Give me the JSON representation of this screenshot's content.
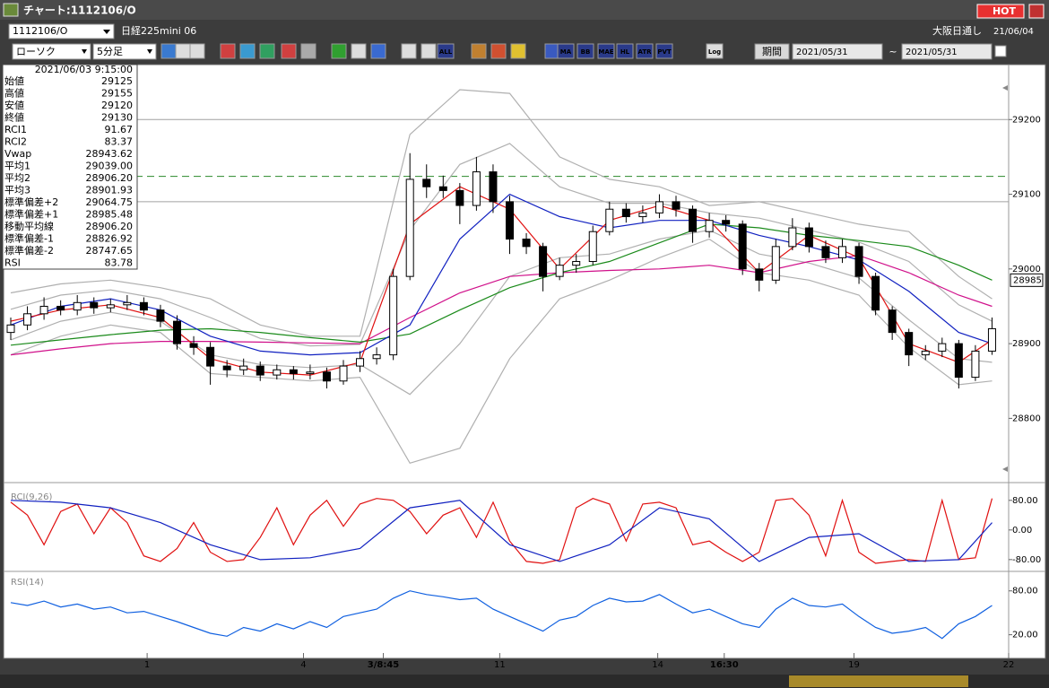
{
  "window": {
    "title": "チャート:1112106/O",
    "hot": "HOT"
  },
  "toolbar": {
    "symbol": "1112106/O",
    "name": "日経225mini 06",
    "market": "大阪日通し",
    "date": "21/06/04",
    "chart_kind": "ローソク",
    "interval": "5分足",
    "icon_labels": [
      "ALL",
      "MA",
      "BB",
      "MAE",
      "HL",
      "ATR",
      "PVT",
      "Log"
    ],
    "period_button": "期間",
    "from": "2021/05/31",
    "tilde": "~",
    "to": "2021/05/31"
  },
  "info_panel": {
    "datetime": "2021/06/03 9:15:00",
    "rows": [
      {
        "label": "始値",
        "value": "29125",
        "color": "#000000"
      },
      {
        "label": "高値",
        "value": "29155",
        "color": "#000000"
      },
      {
        "label": "安値",
        "value": "29120",
        "color": "#000000"
      },
      {
        "label": "終値",
        "value": "29130",
        "color": "#000000"
      },
      {
        "label": "RCI1",
        "value": "91.67",
        "color": "#d01010"
      },
      {
        "label": "RCI2",
        "value": "83.37",
        "color": "#1020c0"
      },
      {
        "label": "Vwap",
        "value": "28943.62",
        "color": "#d0108a"
      },
      {
        "label": "平均1",
        "value": "29039.00",
        "color": "#d01010"
      },
      {
        "label": "平均2",
        "value": "28906.20",
        "color": "#1a1a80"
      },
      {
        "label": "平均3",
        "value": "28901.93",
        "color": "#1a8a1a"
      },
      {
        "label": "標準偏差+2",
        "value": "29064.75",
        "color": "#999999"
      },
      {
        "label": "標準偏差+1",
        "value": "28985.48",
        "color": "#999999"
      },
      {
        "label": "移動平均線",
        "value": "28906.20",
        "color": "#101090"
      },
      {
        "label": "標準偏差-1",
        "value": "28826.92",
        "color": "#999999"
      },
      {
        "label": "標準偏差-2",
        "value": "28747.65",
        "color": "#999999"
      },
      {
        "label": "RSI",
        "value": "83.78",
        "color": "#1050d0"
      }
    ]
  },
  "chart_data": [
    {
      "type": "candlestick",
      "xlim": [
        0,
        60
      ],
      "xticks": [
        {
          "value": 8.2,
          "label": "1"
        },
        {
          "value": 17.6,
          "label": "4"
        },
        {
          "value": 22.4,
          "label": "3/8:45",
          "bold": true
        },
        {
          "value": 29.4,
          "label": "11"
        },
        {
          "value": 38.9,
          "label": "14"
        },
        {
          "value": 42.9,
          "label": "16:30",
          "bold": true
        },
        {
          "value": 50.7,
          "label": "19"
        },
        {
          "value": 60,
          "label": "22"
        }
      ],
      "ylim": [
        28720,
        29270
      ],
      "yticks": [
        28800,
        28900,
        29000,
        29100,
        29200
      ],
      "up_color": "#ffffff",
      "down_color": "#000000",
      "open": [
        28915,
        28925,
        28940,
        28950,
        28945,
        28955,
        28948,
        28952,
        28955,
        28945,
        28930,
        28900,
        28895,
        28870,
        28865,
        28870,
        28858,
        28865,
        28860,
        28862,
        28850,
        28870,
        28880,
        28885,
        28990,
        29120,
        29110,
        29105,
        29085,
        29130,
        29090,
        29040,
        29030,
        28990,
        29005,
        29010,
        29050,
        29080,
        29070,
        29075,
        29090,
        29080,
        29050,
        29065,
        29060,
        29000,
        28985,
        29030,
        29055,
        29030,
        29015,
        29030,
        28990,
        28945,
        28915,
        28885,
        28890,
        28900,
        28855,
        28890
      ],
      "high": [
        28935,
        28950,
        28962,
        28958,
        28965,
        28962,
        28960,
        28965,
        28962,
        28952,
        28938,
        28910,
        28902,
        28878,
        28880,
        28876,
        28872,
        28870,
        28872,
        28868,
        28878,
        28890,
        28895,
        29000,
        29155,
        29140,
        29125,
        29115,
        29150,
        29140,
        29098,
        29048,
        29035,
        29015,
        29020,
        29058,
        29090,
        29088,
        29085,
        29100,
        29098,
        29085,
        29075,
        29072,
        29065,
        29008,
        29040,
        29068,
        29062,
        29038,
        29040,
        29035,
        28995,
        28950,
        28920,
        28898,
        28908,
        28905,
        28898,
        28935
      ],
      "low": [
        28905,
        28918,
        28932,
        28938,
        28938,
        28940,
        28942,
        28945,
        28938,
        28922,
        28892,
        28885,
        28845,
        28855,
        28858,
        28850,
        28852,
        28852,
        28852,
        28840,
        28845,
        28862,
        28872,
        28878,
        28985,
        29095,
        29095,
        29060,
        29078,
        29075,
        29020,
        29020,
        28970,
        28985,
        28995,
        29005,
        29045,
        29062,
        29062,
        29068,
        29070,
        29035,
        29042,
        29050,
        28992,
        28970,
        28980,
        29025,
        29022,
        29008,
        29008,
        28980,
        28938,
        28905,
        28870,
        28878,
        28882,
        28840,
        28850,
        28885
      ],
      "close": [
        28925,
        28940,
        28950,
        28945,
        28955,
        28948,
        28952,
        28955,
        28945,
        28930,
        28900,
        28895,
        28870,
        28865,
        28870,
        28858,
        28865,
        28860,
        28862,
        28850,
        28870,
        28880,
        28885,
        28990,
        29120,
        29110,
        29105,
        29085,
        29130,
        29090,
        29040,
        29030,
        28990,
        29005,
        29010,
        29050,
        29080,
        29070,
        29075,
        29090,
        29080,
        29050,
        29065,
        29060,
        29000,
        28985,
        29030,
        29055,
        29030,
        29015,
        29030,
        28990,
        28945,
        28915,
        28885,
        28890,
        28900,
        28855,
        28890,
        28920
      ],
      "series": [
        {
          "color": "#b0b0b0",
          "x": [
            0,
            3,
            6,
            9,
            12,
            15,
            18,
            21,
            24,
            27,
            30,
            33,
            36,
            39,
            42,
            45,
            48,
            51,
            54,
            57,
            59
          ],
          "values": [
            28968,
            28980,
            28985,
            28975,
            28960,
            28925,
            28910,
            28910,
            29180,
            29240,
            29235,
            29150,
            29120,
            29110,
            29085,
            29090,
            29075,
            29060,
            29050,
            28990,
            28960
          ]
        },
        {
          "color": "#b0b0b0",
          "x": [
            0,
            3,
            6,
            9,
            12,
            15,
            18,
            21,
            24,
            27,
            30,
            33,
            36,
            39,
            42,
            45,
            48,
            51,
            54,
            57,
            59
          ],
          "values": [
            28946,
            28965,
            28972,
            28960,
            28935,
            28907,
            28897,
            28899,
            29052,
            29140,
            29168,
            29110,
            29088,
            29088,
            29075,
            29068,
            29052,
            29036,
            29010,
            28952,
            28930
          ]
        },
        {
          "color": "#b0b0b0",
          "x": [
            0,
            3,
            6,
            9,
            12,
            15,
            18,
            21,
            24,
            27,
            30,
            33,
            36,
            39,
            42,
            45,
            48,
            51,
            54,
            57,
            59
          ],
          "values": [
            28905,
            28930,
            28942,
            28930,
            28885,
            28872,
            28868,
            28872,
            28832,
            28900,
            28990,
            29015,
            29020,
            29040,
            29052,
            29020,
            29008,
            28988,
            28932,
            28880,
            28875
          ]
        },
        {
          "color": "#b0b0b0",
          "x": [
            0,
            3,
            6,
            9,
            12,
            15,
            18,
            21,
            24,
            27,
            30,
            33,
            36,
            39,
            42,
            45,
            48,
            51,
            54,
            57,
            59
          ],
          "values": [
            28885,
            28910,
            28925,
            28915,
            28860,
            28855,
            28850,
            28855,
            28740,
            28760,
            28880,
            28960,
            28985,
            29015,
            29040,
            28995,
            28985,
            28965,
            28895,
            28845,
            28850
          ]
        },
        {
          "color": "#d0108a",
          "x": [
            0,
            3,
            6,
            9,
            12,
            15,
            18,
            21,
            24,
            27,
            30,
            33,
            36,
            39,
            42,
            45,
            48,
            51,
            54,
            57,
            59
          ],
          "values": [
            28885,
            28893,
            28900,
            28903,
            28903,
            28902,
            28901,
            28900,
            28935,
            28968,
            28990,
            28995,
            28998,
            29000,
            29005,
            28995,
            29010,
            29018,
            28995,
            28965,
            28950
          ]
        },
        {
          "color": "#1a8a1a",
          "x": [
            0,
            3,
            6,
            9,
            12,
            15,
            18,
            21,
            24,
            27,
            30,
            33,
            36,
            39,
            42,
            45,
            48,
            51,
            54,
            57,
            59
          ],
          "values": [
            28898,
            28905,
            28912,
            28918,
            28920,
            28915,
            28908,
            28902,
            28913,
            28945,
            28975,
            28995,
            29010,
            29035,
            29060,
            29055,
            29045,
            29038,
            29030,
            29005,
            28985
          ]
        },
        {
          "color": "#1020c0",
          "x": [
            0,
            3,
            6,
            9,
            12,
            15,
            18,
            21,
            24,
            27,
            30,
            33,
            36,
            39,
            42,
            45,
            48,
            51,
            54,
            57,
            59
          ],
          "values": [
            28925,
            28950,
            28960,
            28945,
            28910,
            28890,
            28885,
            28888,
            28925,
            29040,
            29100,
            29070,
            29055,
            29065,
            29065,
            29045,
            29030,
            29012,
            28970,
            28915,
            28900
          ]
        },
        {
          "color": "#e01010",
          "x": [
            0,
            3,
            6,
            9,
            12,
            15,
            18,
            21,
            24,
            27,
            30,
            33,
            36,
            39,
            42,
            45,
            48,
            51,
            54,
            57,
            59
          ],
          "values": [
            28930,
            28945,
            28952,
            28935,
            28880,
            28862,
            28858,
            28875,
            29060,
            29110,
            29080,
            29000,
            29065,
            29085,
            29065,
            28995,
            29045,
            29015,
            28900,
            28875,
            28905
          ]
        }
      ],
      "reference_lines": [
        {
          "value": 29200,
          "color": "#a0a0a0",
          "dashed": false
        },
        {
          "value": 29124,
          "color": "#2a8a2a",
          "dashed": true
        },
        {
          "value": 29090,
          "color": "#a0a0a0",
          "dashed": false
        }
      ],
      "last_price": 28985
    },
    {
      "type": "line",
      "title": "RCI(9,26)",
      "xlim": [
        0,
        60
      ],
      "ylim": [
        -107,
        111
      ],
      "yticks": [
        {
          "value": 80,
          "label": "80.00"
        },
        {
          "value": 0,
          "label": "0.00"
        },
        {
          "value": -80,
          "label": "-80.00"
        }
      ],
      "series": [
        {
          "color": "#e01010",
          "values": [
            75,
            40,
            -40,
            50,
            70,
            -10,
            60,
            20,
            -70,
            -85,
            -50,
            20,
            -60,
            -85,
            -80,
            -20,
            60,
            -40,
            40,
            80,
            10,
            70,
            85,
            80,
            50,
            -10,
            40,
            60,
            -20,
            75,
            -30,
            -85,
            -90,
            -80,
            60,
            85,
            70,
            -30,
            70,
            75,
            60,
            -40,
            -30,
            -60,
            -85,
            -60,
            80,
            85,
            40,
            -70,
            80,
            -60,
            -90,
            -85,
            -80,
            -85,
            80,
            -80,
            -75,
            85
          ]
        },
        {
          "color": "#1020c0",
          "x": [
            0,
            3,
            6,
            9,
            12,
            15,
            18,
            21,
            24,
            27,
            30,
            33,
            36,
            39,
            42,
            45,
            48,
            51,
            54,
            57,
            59
          ],
          "values": [
            80,
            75,
            60,
            20,
            -40,
            -80,
            -75,
            -50,
            60,
            80,
            -40,
            -85,
            -40,
            60,
            30,
            -85,
            -20,
            -10,
            -85,
            -80,
            20
          ]
        }
      ]
    },
    {
      "type": "line",
      "title": "RSI(14)",
      "xlim": [
        0,
        60
      ],
      "ylim": [
        -5,
        103
      ],
      "yticks": [
        {
          "value": 80,
          "label": "80.00"
        },
        {
          "value": 20,
          "label": "20.00"
        }
      ],
      "series": [
        {
          "color": "#1060e0",
          "values": [
            64,
            60,
            66,
            58,
            62,
            55,
            58,
            50,
            52,
            45,
            38,
            30,
            22,
            18,
            30,
            25,
            35,
            28,
            38,
            30,
            45,
            50,
            55,
            70,
            80,
            75,
            72,
            68,
            70,
            55,
            45,
            35,
            25,
            40,
            45,
            60,
            70,
            65,
            66,
            75,
            62,
            50,
            55,
            45,
            35,
            30,
            55,
            70,
            60,
            58,
            62,
            45,
            30,
            22,
            25,
            30,
            15,
            35,
            45,
            60
          ]
        }
      ]
    }
  ]
}
